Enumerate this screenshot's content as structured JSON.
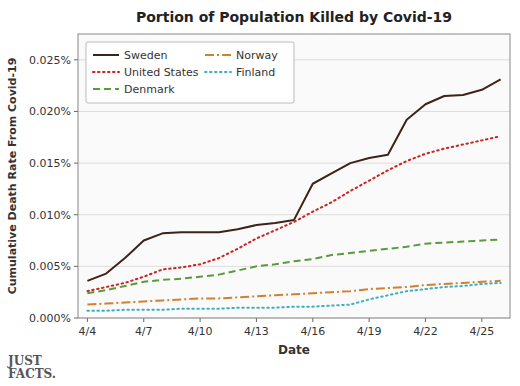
{
  "chart_data": {
    "type": "line",
    "title": "Portion of Population Killed by Covid-19",
    "x_label": "Date",
    "y_label": "Cumulative Death Rate From Covid-19",
    "annotations": [
      "JUST\nFACTS."
    ],
    "categories": [
      "4/4",
      null,
      null,
      "4/7",
      null,
      null,
      "4/10",
      null,
      null,
      "4/13",
      null,
      null,
      "4/16",
      null,
      null,
      "4/19",
      null,
      null,
      "4/22",
      null,
      null,
      "4/25",
      null
    ],
    "ylim": [
      0,
      0.000275
    ],
    "yticks": [
      {
        "value": 0.0,
        "label": "0.000%"
      },
      {
        "value": 5e-05,
        "label": "0.005%"
      },
      {
        "value": 0.0001,
        "label": "0.010%"
      },
      {
        "value": 0.00015,
        "label": "0.015%"
      },
      {
        "value": 0.0002,
        "label": "0.020%"
      },
      {
        "value": 0.00025,
        "label": "0.025%"
      }
    ],
    "grid": true,
    "legend": "top-left",
    "series": [
      {
        "name": "Sweden",
        "color": "#3d2318",
        "line_style": "solid",
        "values": [
          3.6e-05,
          4.3e-05,
          5.8e-05,
          7.5e-05,
          8.2e-05,
          8.3e-05,
          8.3e-05,
          8.3e-05,
          8.6e-05,
          9e-05,
          9.2e-05,
          9.5e-05,
          0.00013,
          0.00014,
          0.00015,
          0.000155,
          0.000158,
          0.000192,
          0.000207,
          0.000215,
          0.000216,
          0.000221,
          0.000231
        ]
      },
      {
        "name": "Norway",
        "color": "#d08030",
        "line_style": "dashdot",
        "values": [
          1.3e-05,
          1.4e-05,
          1.5e-05,
          1.6e-05,
          1.7e-05,
          1.8e-05,
          1.9e-05,
          1.9e-05,
          2e-05,
          2.1e-05,
          2.2e-05,
          2.3e-05,
          2.4e-05,
          2.5e-05,
          2.6e-05,
          2.8e-05,
          2.9e-05,
          3e-05,
          3.2e-05,
          3.3e-05,
          3.4e-05,
          3.5e-05,
          3.6e-05
        ]
      },
      {
        "name": "United States",
        "color": "#cc2222",
        "line_style": "dotted",
        "values": [
          2.6e-05,
          3e-05,
          3.4e-05,
          4e-05,
          4.7e-05,
          4.9e-05,
          5.2e-05,
          5.8e-05,
          6.7e-05,
          7.7e-05,
          8.5e-05,
          9.3e-05,
          0.000103,
          0.000112,
          0.000123,
          0.000133,
          0.000143,
          0.000152,
          0.000159,
          0.000164,
          0.000168,
          0.000172,
          0.000176
        ]
      },
      {
        "name": "Finland",
        "color": "#3ab0c0",
        "line_style": "dotted",
        "values": [
          7e-06,
          7e-06,
          8e-06,
          8e-06,
          8e-06,
          9e-06,
          9e-06,
          9e-06,
          1e-05,
          1e-05,
          1e-05,
          1.1e-05,
          1.1e-05,
          1.2e-05,
          1.3e-05,
          1.8e-05,
          2.2e-05,
          2.6e-05,
          2.8e-05,
          3e-05,
          3.1e-05,
          3.3e-05,
          3.4e-05
        ]
      },
      {
        "name": "Denmark",
        "color": "#5a9a3a",
        "line_style": "dashed",
        "values": [
          2.4e-05,
          2.7e-05,
          3.1e-05,
          3.5e-05,
          3.7e-05,
          3.8e-05,
          4e-05,
          4.2e-05,
          4.6e-05,
          5e-05,
          5.2e-05,
          5.5e-05,
          5.7e-05,
          6.1e-05,
          6.3e-05,
          6.5e-05,
          6.7e-05,
          6.9e-05,
          7.2e-05,
          7.3e-05,
          7.4e-05,
          7.5e-05,
          7.6e-05
        ]
      }
    ]
  }
}
